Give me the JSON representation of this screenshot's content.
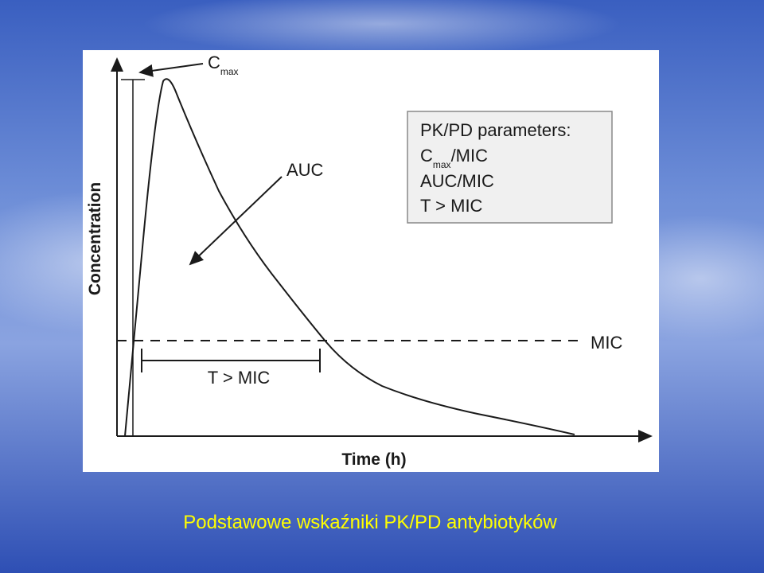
{
  "slide": {
    "caption": "Podstawowe wskaźniki PK/PD antybiotyków"
  },
  "diagram": {
    "y_axis_label": "Concentration",
    "x_axis_label": "Time (h)",
    "cmax_label": {
      "main": "C",
      "sub": "max"
    },
    "auc_label": "AUC",
    "mic_label": "MIC",
    "t_mic_label": "T > MIC",
    "parameters_box": {
      "title": "PK/PD parameters:",
      "items": [
        {
          "main": "C",
          "sub": "max",
          "suffix": "/MIC"
        },
        "AUC/MIC",
        "T > MIC"
      ]
    }
  }
}
